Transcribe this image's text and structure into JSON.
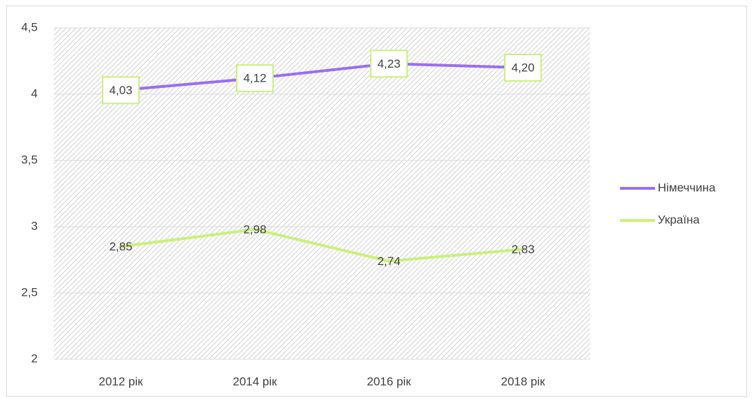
{
  "chart_data": {
    "type": "line",
    "categories": [
      "2012  рік",
      "2014 рік",
      "2016 рік",
      "2018 рік"
    ],
    "series": [
      {
        "name": "Німеччина",
        "color": "#9b6ef0",
        "values": [
          4.03,
          4.12,
          4.23,
          4.2
        ],
        "value_labels": [
          "4,03",
          "4,12",
          "4,23",
          "4,20"
        ]
      },
      {
        "name": "Україна",
        "color": "#c9f17a",
        "values": [
          2.85,
          2.98,
          2.74,
          2.83
        ],
        "value_labels": [
          "2,85",
          "2,98",
          "2,74",
          "2,83"
        ]
      }
    ],
    "ylim": [
      2,
      4.5
    ],
    "yticks": [
      2,
      {
        "value": 2.5,
        "label": "2,5"
      },
      3,
      {
        "value": 3.5,
        "label": "3,5"
      },
      4,
      {
        "value": 4.5,
        "label": "4,5"
      }
    ],
    "grid": true,
    "legend": "right"
  }
}
